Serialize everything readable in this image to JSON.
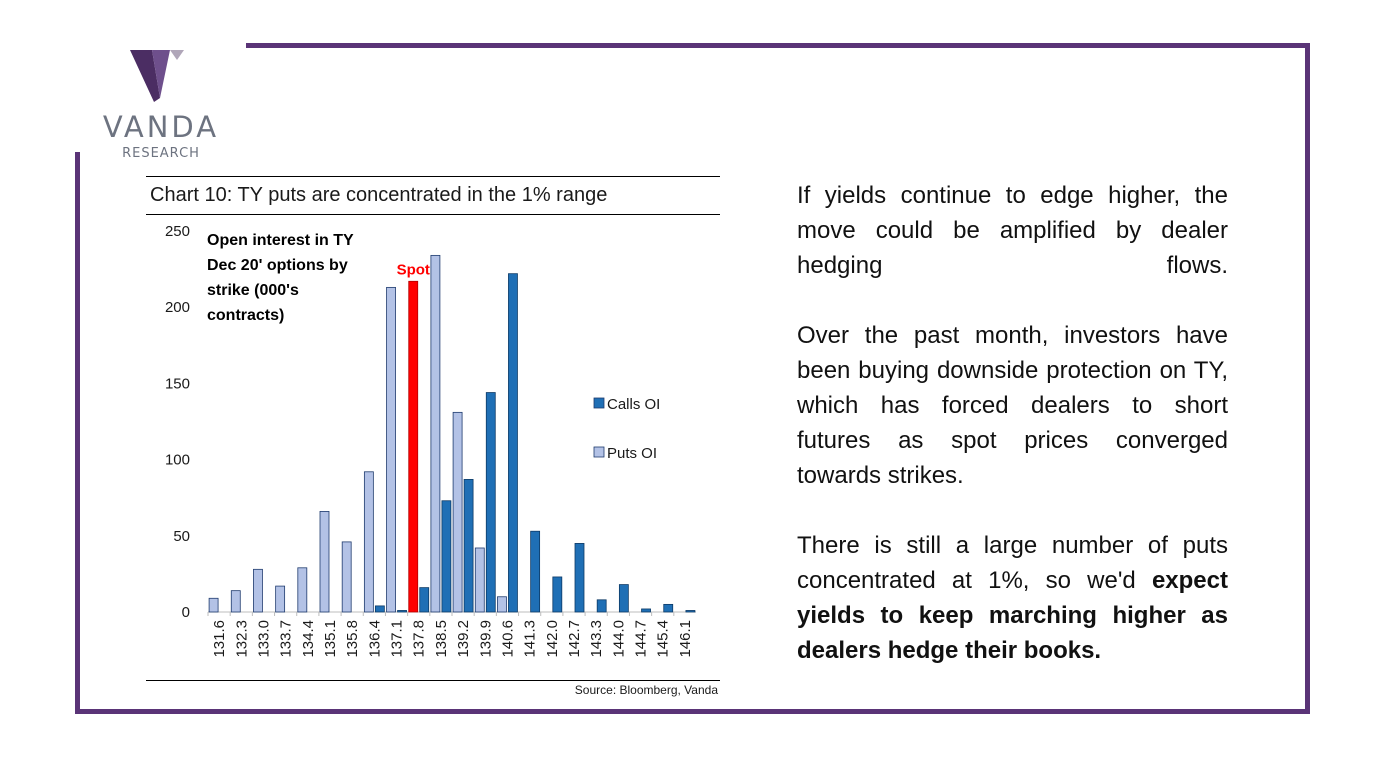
{
  "logo": {
    "name": "VANDA",
    "sub": "RESEARCH",
    "mark_colors": {
      "dark": "#4b2d63",
      "mid": "#6e4f8c",
      "light": "#b0a6b9"
    }
  },
  "frame": {
    "color": "#5a3477"
  },
  "chart_title": "Chart 10: TY puts are concentrated in the 1% range",
  "source": "Source: Bloomberg, Vanda",
  "chart_data": {
    "type": "bar",
    "annotation": "Open interest in TY Dec 20' options by strike (000's contracts)",
    "annotation_lines": [
      "Open interest in TY",
      "Dec 20' options by",
      "strike (000's",
      "contracts)"
    ],
    "spot_label": "Spot",
    "categories": [
      "131.6",
      "132.3",
      "133.0",
      "133.7",
      "134.4",
      "135.1",
      "135.8",
      "136.4",
      "137.1",
      "137.8",
      "138.5",
      "139.2",
      "139.9",
      "140.6",
      "141.3",
      "142.0",
      "142.7",
      "143.3",
      "144.0",
      "144.7",
      "145.4",
      "146.1"
    ],
    "series": [
      {
        "name": "Calls OI",
        "color": "#1f6fb5",
        "values": [
          0,
          0,
          0,
          0,
          0,
          0,
          0,
          4,
          1,
          16,
          73,
          87,
          144,
          222,
          53,
          23,
          45,
          8,
          18,
          2,
          5,
          1
        ]
      },
      {
        "name": "Puts OI",
        "color": "#b3c2e6",
        "values": [
          9,
          14,
          28,
          17,
          29,
          66,
          46,
          92,
          213,
          217,
          234,
          131,
          42,
          10,
          0,
          0,
          0,
          0,
          0,
          0,
          0,
          0
        ]
      }
    ],
    "spot": {
      "category": "137.8",
      "value": 217,
      "color": "#ff0000"
    },
    "yticks": [
      0,
      50,
      100,
      150,
      200,
      250
    ],
    "ylim": [
      0,
      250
    ],
    "grid": false,
    "legend_position": "right"
  },
  "paragraphs": {
    "p1": "If yields continue to edge higher, the move could be amplified by dealer hedging flows.",
    "p2": "Over the past month, investors have been buying downside protection on TY, which has forced dealers to short futures as spot prices converged towards strikes.",
    "p3_normal": "There is still a large number of puts concentrated at 1%, so we'd ",
    "p3_bold": "expect yields to keep marching higher as dealers hedge their books."
  }
}
